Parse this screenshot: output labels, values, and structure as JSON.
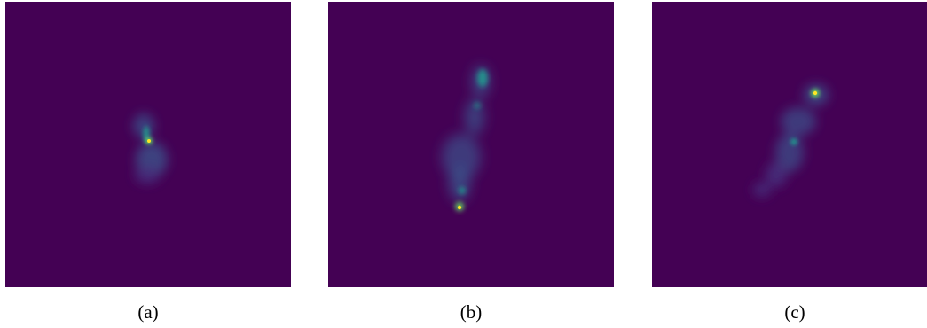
{
  "colormap": {
    "background": "#440154",
    "low": "#472c7a",
    "mid": "#3b528b",
    "teal": "#21918c",
    "green": "#5ec962",
    "peak": "#fde725"
  },
  "panels": [
    {
      "id": "a",
      "caption": "(a)"
    },
    {
      "id": "b",
      "caption": "(b)"
    },
    {
      "id": "c",
      "caption": "(c)"
    }
  ]
}
